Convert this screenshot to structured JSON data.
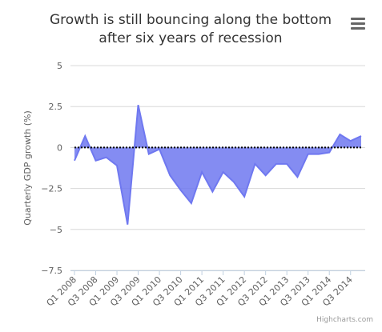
{
  "chart_data": {
    "type": "area",
    "title": [
      "Growth is still bouncing along the bottom",
      "after six years of recession"
    ],
    "y_axis_label": "Quarterly GDP growth (%)",
    "credits": "Highcharts.com",
    "categories": [
      "Q1 2008",
      null,
      "Q3 2008",
      null,
      "Q1 2009",
      null,
      "Q3 2009",
      null,
      "Q1 2010",
      null,
      "Q3 2010",
      null,
      "Q1 2011",
      null,
      "Q3 2011",
      null,
      "Q1 2012",
      null,
      "Q3 2012",
      null,
      "Q1 2013",
      null,
      "Q3 2013",
      null,
      "Q1 2014",
      null,
      "Q3 2014",
      null
    ],
    "values": [
      -0.8,
      0.7,
      -0.8,
      -0.6,
      -1.1,
      -4.7,
      2.6,
      -0.4,
      -0.1,
      -1.7,
      -2.6,
      -3.4,
      -1.5,
      -2.7,
      -1.5,
      -2.1,
      -3.0,
      -1.0,
      -1.7,
      -1.0,
      -1.0,
      -1.8,
      -0.4,
      -0.4,
      -0.3,
      0.8,
      0.4,
      0.7
    ],
    "color": "#6f78f0",
    "ylim": [
      -7.5,
      5
    ],
    "yticks": [
      {
        "value": -7.5,
        "label": "−7.5"
      },
      {
        "value": -5,
        "label": "−5"
      },
      {
        "value": -2.5,
        "label": "−2.5"
      },
      0,
      2.5,
      5
    ],
    "grid": true,
    "zero_line": true
  }
}
